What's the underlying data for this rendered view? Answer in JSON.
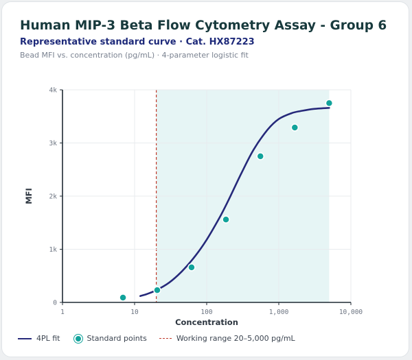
{
  "header": {
    "title": "Human MIP-3 Beta Flow Cytometry Assay - Group 6",
    "subtitle": "Representative standard curve · Cat. HX87223",
    "description": "Bead MFI vs. concentration (pg/mL) · 4-parameter logistic fit"
  },
  "colors": {
    "fit_line": "#26297a",
    "points": "#11a39b",
    "working_range_fill": "#e6f5f5",
    "lloq_line": "#c0392b",
    "grid": "#e8ebee",
    "axis": "#1f2a33"
  },
  "chart_data": {
    "type": "scatter",
    "title": "Human MIP-3 Beta Flow Cytometry Assay - Group 6",
    "xlabel": "Concentration",
    "ylabel": "MFI",
    "x_scale": "log",
    "xlim": [
      1,
      10000
    ],
    "ylim": [
      0,
      4000
    ],
    "x_ticks": [
      1,
      10,
      100,
      1000,
      10000
    ],
    "x_tick_labels": [
      "1",
      "10",
      "100",
      "1,000",
      "10,000"
    ],
    "y_ticks": [
      0,
      1000,
      2000,
      3000,
      4000
    ],
    "y_tick_labels": [
      "0",
      "1k",
      "2k",
      "3k",
      "4k"
    ],
    "grid": true,
    "legend_position": "bottom",
    "series": [
      {
        "name": "4PL fit",
        "kind": "line",
        "x": [
          12,
          15,
          20,
          30,
          45,
          70,
          100,
          150,
          200,
          300,
          450,
          700,
          1000,
          1500,
          2000,
          3000,
          5000
        ],
        "y": [
          120,
          160,
          230,
          370,
          580,
          880,
          1180,
          1590,
          1920,
          2420,
          2880,
          3250,
          3450,
          3560,
          3600,
          3640,
          3660
        ]
      },
      {
        "name": "Standard points",
        "kind": "scatter",
        "x": [
          6.9,
          20.6,
          61.7,
          185,
          556,
          1667,
          5000
        ],
        "y": [
          90,
          230,
          660,
          1560,
          2750,
          3290,
          3750
        ]
      }
    ],
    "working_range": {
      "label": "Working range 20–5,000 pg/mL",
      "x_start": 20,
      "x_end": 5000
    }
  },
  "legend": [
    {
      "label": "4PL fit",
      "kind": "line"
    },
    {
      "label": "Standard points",
      "kind": "dot"
    },
    {
      "label": "Working range 20–5,000 pg/mL",
      "kind": "dash"
    }
  ]
}
